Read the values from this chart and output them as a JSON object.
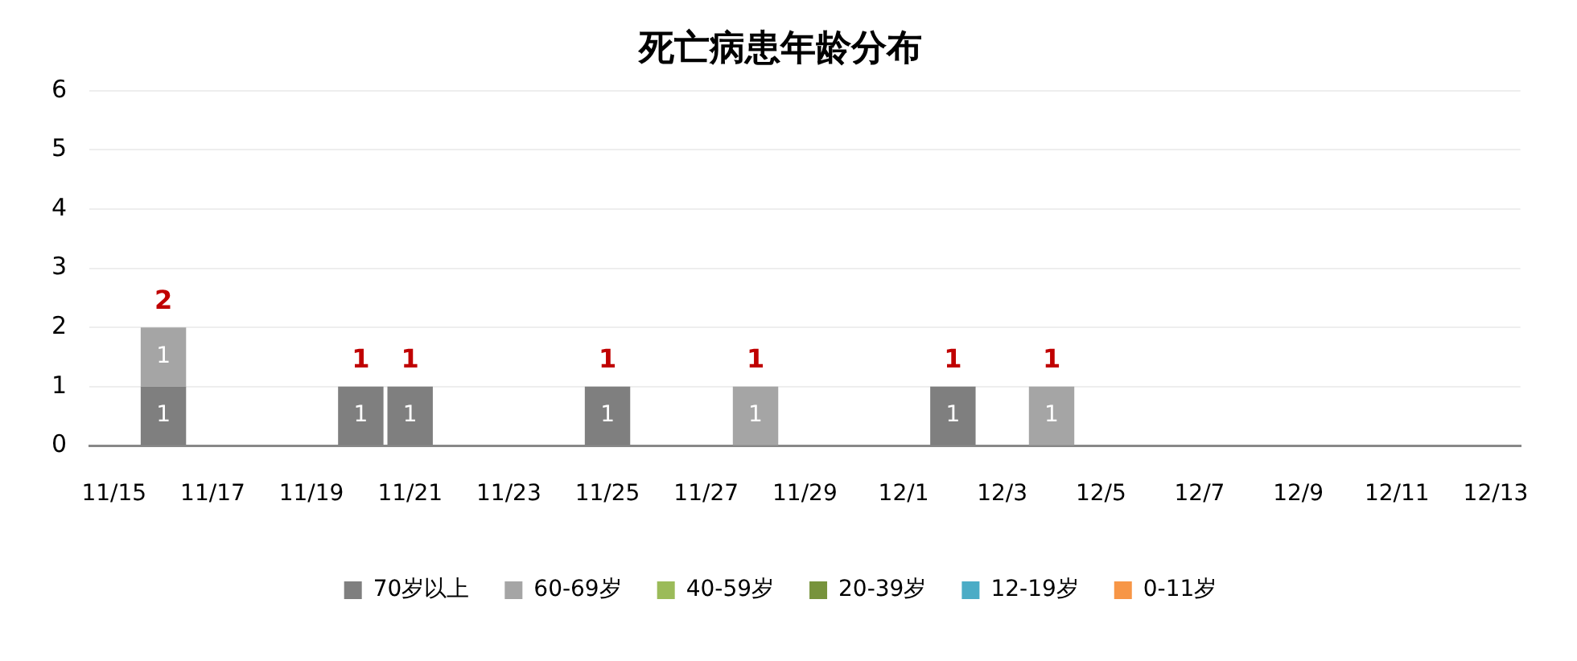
{
  "chart_data": {
    "type": "bar",
    "title": "死亡病患年龄分布",
    "stacked": true,
    "data_labels": true,
    "grid": "y",
    "legend": "bottom",
    "categories": [
      "11/15",
      null,
      "11/17",
      null,
      "11/19",
      null,
      "11/21",
      null,
      "11/23",
      null,
      "11/25",
      null,
      "11/27",
      null,
      "11/29",
      null,
      "12/1",
      null,
      "12/3",
      null,
      "12/5",
      null,
      "12/7",
      null,
      "12/9",
      null,
      "12/11",
      null,
      "12/13"
    ],
    "ylim": [
      0,
      6
    ],
    "yticks": [
      0,
      1,
      2,
      3,
      4,
      5,
      6
    ],
    "totals": [
      null,
      "2",
      null,
      null,
      null,
      "1",
      "1",
      null,
      null,
      null,
      "1",
      null,
      null,
      "1",
      null,
      null,
      null,
      "1",
      null,
      "1",
      null,
      null,
      null,
      null,
      null,
      null,
      null,
      null,
      null
    ],
    "series": [
      {
        "name": "70岁以上",
        "color": "#7f7f7f",
        "values": [
          null,
          1,
          null,
          null,
          null,
          1,
          1,
          null,
          null,
          null,
          1,
          null,
          null,
          null,
          null,
          null,
          null,
          1,
          null,
          null,
          null,
          null,
          null,
          null,
          null,
          null,
          null,
          null,
          null
        ]
      },
      {
        "name": "60-69岁",
        "color": "#a5a5a5",
        "values": [
          null,
          1,
          null,
          null,
          null,
          null,
          null,
          null,
          null,
          null,
          null,
          null,
          null,
          1,
          null,
          null,
          null,
          null,
          null,
          1,
          null,
          null,
          null,
          null,
          null,
          null,
          null,
          null,
          null
        ]
      },
      {
        "name": "40-59岁",
        "color": "#9bbb59",
        "values": [
          null,
          null,
          null,
          null,
          null,
          null,
          null,
          null,
          null,
          null,
          null,
          null,
          null,
          null,
          null,
          null,
          null,
          null,
          null,
          null,
          null,
          null,
          null,
          null,
          null,
          null,
          null,
          null,
          null
        ]
      },
      {
        "name": "20-39岁",
        "color": "#77933c",
        "values": [
          null,
          null,
          null,
          null,
          null,
          null,
          null,
          null,
          null,
          null,
          null,
          null,
          null,
          null,
          null,
          null,
          null,
          null,
          null,
          null,
          null,
          null,
          null,
          null,
          null,
          null,
          null,
          null,
          null
        ]
      },
      {
        "name": "12-19岁",
        "color": "#4bacc6",
        "values": [
          null,
          null,
          null,
          null,
          null,
          null,
          null,
          null,
          null,
          null,
          null,
          null,
          null,
          null,
          null,
          null,
          null,
          null,
          null,
          null,
          null,
          null,
          null,
          null,
          null,
          null,
          null,
          null,
          null
        ]
      },
      {
        "name": "0-11岁",
        "color": "#f79646",
        "values": [
          null,
          null,
          null,
          null,
          null,
          null,
          null,
          null,
          null,
          null,
          null,
          null,
          null,
          null,
          null,
          null,
          null,
          null,
          null,
          null,
          null,
          null,
          null,
          null,
          null,
          null,
          null,
          null,
          null
        ]
      }
    ]
  }
}
